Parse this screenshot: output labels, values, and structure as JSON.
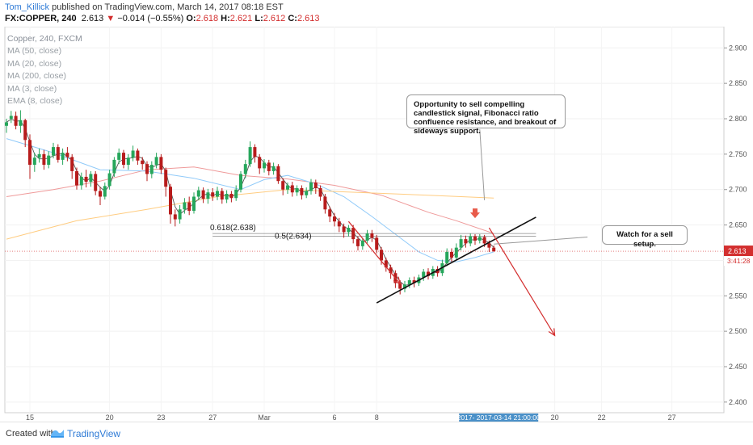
{
  "header": {
    "author": "Tom_Killick",
    "published_text": "published on TradingView.com, March 14, 2017 08:18 EST",
    "symbol": "FX:COPPER, 240",
    "last": "2.613",
    "change_icon": "triangle-down-icon",
    "change_arrow": "▼",
    "change": "−0.014 (−0.55%)",
    "o_label": "O:",
    "o": "2.618",
    "h_label": "H:",
    "h": "2.621",
    "l_label": "L:",
    "l": "2.612",
    "c_label": "C:",
    "c": "2.613"
  },
  "legend": {
    "items": [
      "Copper, 240, FXCM",
      "MA (50, close)",
      "MA (20, close)",
      "MA (200, close)",
      "MA (3, close)",
      "EMA (8, close)"
    ]
  },
  "annotations": {
    "opportunity": "Opportunity to sell compelling candlestick signal, Fibonacci ratio confluence resistance, and breakout of sideways support.",
    "watch": "Watch for a sell setup."
  },
  "footer": {
    "created": "Created with",
    "brand": "TradingView",
    "logo_icon": "tradingview-logo-icon"
  },
  "colors": {
    "up": "#26a65b",
    "down": "#b71c1c",
    "ma50": "#ef9a9a",
    "ma20": "#90caf9",
    "ma200": "#ffcc80",
    "ma3": "#555555",
    "arrow": "#d32f2f",
    "price_tag": "#d32f2f"
  },
  "chart_data": {
    "type": "candlestick",
    "symbol": "FX:COPPER",
    "timeframe": "240",
    "y_ticks": [
      "2.900",
      "2.850",
      "2.800",
      "2.750",
      "2.700",
      "2.650",
      "2.600",
      "2.550",
      "2.500",
      "2.450",
      "2.400"
    ],
    "ylim": [
      2.385,
      2.93
    ],
    "x_ticks": [
      {
        "label": "15",
        "index": 5
      },
      {
        "label": "20",
        "index": 22
      },
      {
        "label": "23",
        "index": 33
      },
      {
        "label": "27",
        "index": 44
      },
      {
        "label": "Mar",
        "index": 55
      },
      {
        "label": "6",
        "index": 70
      },
      {
        "label": "8",
        "index": 79
      },
      {
        "label": "20",
        "index": 117
      },
      {
        "label": "22",
        "index": 127
      },
      {
        "label": "27",
        "index": 142
      }
    ],
    "highlight_x_label": "2017- 2017-03-14 21:00:00",
    "current_price_label": "2.613",
    "countdown_label": "3:41:28",
    "fib_levels": [
      {
        "label": "0.618(2.638)",
        "value": 2.638
      },
      {
        "label": "0.5(2.634)",
        "value": 2.634
      }
    ],
    "trendline": {
      "from": {
        "index": 79,
        "value": 2.54
      },
      "to": {
        "index": 113,
        "value": 2.661
      }
    },
    "sell_arrows": [
      {
        "from": {
          "index": 73,
          "value": 2.655
        },
        "to": {
          "index": 84,
          "value": 2.567
        }
      },
      {
        "from": {
          "index": 103,
          "value": 2.646
        },
        "to": {
          "index": 117,
          "value": 2.494
        }
      }
    ],
    "callout_pointers": [
      {
        "from": {
          "index": 101,
          "value": 2.785
        },
        "to": {
          "index": 102,
          "value": 2.685
        }
      },
      {
        "from": {
          "index": 124,
          "value": 2.633
        },
        "to": {
          "index": 104,
          "value": 2.623
        }
      }
    ],
    "sell_marker": {
      "index": 100,
      "value": 2.663
    },
    "candles": [
      [
        2.79,
        2.795,
        2.78,
        2.8
      ],
      [
        2.8,
        2.804,
        2.794,
        2.811
      ],
      [
        2.804,
        2.79,
        2.785,
        2.81
      ],
      [
        2.79,
        2.798,
        2.78,
        2.812
      ],
      [
        2.798,
        2.77,
        2.76,
        2.8
      ],
      [
        2.77,
        2.735,
        2.715,
        2.778
      ],
      [
        2.735,
        2.745,
        2.725,
        2.752
      ],
      [
        2.745,
        2.75,
        2.738,
        2.758
      ],
      [
        2.75,
        2.735,
        2.728,
        2.756
      ],
      [
        2.735,
        2.748,
        2.73,
        2.754
      ],
      [
        2.748,
        2.76,
        2.744,
        2.766
      ],
      [
        2.76,
        2.742,
        2.738,
        2.764
      ],
      [
        2.742,
        2.752,
        2.735,
        2.758
      ],
      [
        2.752,
        2.746,
        2.74,
        2.76
      ],
      [
        2.746,
        2.726,
        2.715,
        2.75
      ],
      [
        2.726,
        2.706,
        2.7,
        2.731
      ],
      [
        2.706,
        2.718,
        2.7,
        2.724
      ],
      [
        2.718,
        2.711,
        2.703,
        2.728
      ],
      [
        2.711,
        2.722,
        2.704,
        2.726
      ],
      [
        2.722,
        2.698,
        2.692,
        2.726
      ],
      [
        2.698,
        2.69,
        2.678,
        2.704
      ],
      [
        2.69,
        2.705,
        2.686,
        2.71
      ],
      [
        2.705,
        2.723,
        2.7,
        2.728
      ],
      [
        2.723,
        2.742,
        2.718,
        2.746
      ],
      [
        2.742,
        2.752,
        2.736,
        2.758
      ],
      [
        2.752,
        2.735,
        2.73,
        2.756
      ],
      [
        2.735,
        2.745,
        2.728,
        2.75
      ],
      [
        2.745,
        2.755,
        2.74,
        2.762
      ],
      [
        2.755,
        2.741,
        2.735,
        2.758
      ],
      [
        2.741,
        2.736,
        2.728,
        2.746
      ],
      [
        2.736,
        2.722,
        2.712,
        2.74
      ],
      [
        2.722,
        2.735,
        2.716,
        2.74
      ],
      [
        2.735,
        2.746,
        2.73,
        2.752
      ],
      [
        2.746,
        2.728,
        2.722,
        2.75
      ],
      [
        2.728,
        2.704,
        2.69,
        2.731
      ],
      [
        2.704,
        2.665,
        2.652,
        2.708
      ],
      [
        2.665,
        2.658,
        2.648,
        2.672
      ],
      [
        2.658,
        2.672,
        2.652,
        2.678
      ],
      [
        2.672,
        2.682,
        2.666,
        2.688
      ],
      [
        2.682,
        2.67,
        2.664,
        2.69
      ],
      [
        2.67,
        2.69,
        2.666,
        2.696
      ],
      [
        2.69,
        2.699,
        2.685,
        2.704
      ],
      [
        2.699,
        2.687,
        2.681,
        2.703
      ],
      [
        2.687,
        2.696,
        2.68,
        2.701
      ],
      [
        2.696,
        2.69,
        2.684,
        2.702
      ],
      [
        2.69,
        2.698,
        2.685,
        2.704
      ],
      [
        2.698,
        2.686,
        2.68,
        2.702
      ],
      [
        2.686,
        2.694,
        2.681,
        2.699
      ],
      [
        2.694,
        2.688,
        2.682,
        2.698
      ],
      [
        2.688,
        2.7,
        2.684,
        2.706
      ],
      [
        2.7,
        2.722,
        2.696,
        2.726
      ],
      [
        2.722,
        2.736,
        2.716,
        2.742
      ],
      [
        2.736,
        2.76,
        2.732,
        2.768
      ],
      [
        2.76,
        2.746,
        2.738,
        2.764
      ],
      [
        2.746,
        2.73,
        2.722,
        2.75
      ],
      [
        2.73,
        2.738,
        2.724,
        2.743
      ],
      [
        2.738,
        2.726,
        2.72,
        2.742
      ],
      [
        2.726,
        2.733,
        2.721,
        2.738
      ],
      [
        2.733,
        2.712,
        2.708,
        2.736
      ],
      [
        2.712,
        2.7,
        2.692,
        2.716
      ],
      [
        2.7,
        2.706,
        2.694,
        2.71
      ],
      [
        2.706,
        2.696,
        2.69,
        2.711
      ],
      [
        2.696,
        2.702,
        2.691,
        2.706
      ],
      [
        2.702,
        2.692,
        2.686,
        2.706
      ],
      [
        2.692,
        2.698,
        2.688,
        2.703
      ],
      [
        2.698,
        2.71,
        2.693,
        2.715
      ],
      [
        2.71,
        2.702,
        2.694,
        2.714
      ],
      [
        2.702,
        2.69,
        2.684,
        2.706
      ],
      [
        2.69,
        2.672,
        2.666,
        2.694
      ],
      [
        2.672,
        2.662,
        2.654,
        2.676
      ],
      [
        2.662,
        2.655,
        2.648,
        2.667
      ],
      [
        2.655,
        2.648,
        2.64,
        2.66
      ],
      [
        2.648,
        2.64,
        2.632,
        2.652
      ],
      [
        2.64,
        2.646,
        2.634,
        2.65
      ],
      [
        2.646,
        2.63,
        2.624,
        2.65
      ],
      [
        2.63,
        2.62,
        2.614,
        2.634
      ],
      [
        2.62,
        2.628,
        2.615,
        2.632
      ],
      [
        2.628,
        2.638,
        2.624,
        2.643
      ],
      [
        2.638,
        2.632,
        2.626,
        2.643
      ],
      [
        2.632,
        2.615,
        2.61,
        2.636
      ],
      [
        2.615,
        2.6,
        2.594,
        2.619
      ],
      [
        2.6,
        2.59,
        2.584,
        2.604
      ],
      [
        2.59,
        2.582,
        2.574,
        2.594
      ],
      [
        2.582,
        2.568,
        2.561,
        2.586
      ],
      [
        2.568,
        2.56,
        2.552,
        2.572
      ],
      [
        2.56,
        2.566,
        2.555,
        2.571
      ],
      [
        2.566,
        2.572,
        2.561,
        2.576
      ],
      [
        2.572,
        2.568,
        2.562,
        2.577
      ],
      [
        2.568,
        2.576,
        2.564,
        2.58
      ],
      [
        2.576,
        2.584,
        2.571,
        2.588
      ],
      [
        2.584,
        2.578,
        2.573,
        2.589
      ],
      [
        2.578,
        2.588,
        2.574,
        2.592
      ],
      [
        2.588,
        2.582,
        2.577,
        2.592
      ],
      [
        2.582,
        2.596,
        2.578,
        2.601
      ],
      [
        2.596,
        2.612,
        2.592,
        2.617
      ],
      [
        2.612,
        2.604,
        2.598,
        2.617
      ],
      [
        2.604,
        2.618,
        2.6,
        2.624
      ],
      [
        2.618,
        2.63,
        2.614,
        2.636
      ],
      [
        2.63,
        2.624,
        2.618,
        2.635
      ],
      [
        2.624,
        2.634,
        2.62,
        2.638
      ],
      [
        2.634,
        2.628,
        2.622,
        2.637
      ],
      [
        2.628,
        2.633,
        2.624,
        2.637
      ],
      [
        2.633,
        2.624,
        2.619,
        2.636
      ],
      [
        2.624,
        2.618,
        2.612,
        2.628
      ],
      [
        2.618,
        2.613,
        2.612,
        2.621
      ]
    ],
    "series": [
      {
        "name": "MA (50, close)",
        "x": [
          0,
          10,
          20,
          30,
          40,
          50,
          60,
          70,
          80,
          90,
          96,
          104
        ],
        "y": [
          2.69,
          2.7,
          2.712,
          2.728,
          2.732,
          2.72,
          2.715,
          2.706,
          2.692,
          2.668,
          2.656,
          2.638
        ]
      },
      {
        "name": "MA (20, close)",
        "x": [
          0,
          10,
          20,
          30,
          40,
          50,
          55,
          60,
          66,
          72,
          78,
          84,
          88,
          92,
          96,
          100,
          104
        ],
        "y": [
          2.772,
          2.752,
          2.728,
          2.726,
          2.716,
          2.7,
          2.714,
          2.72,
          2.708,
          2.69,
          2.662,
          2.632,
          2.612,
          2.6,
          2.598,
          2.604,
          2.612
        ]
      },
      {
        "name": "MA (200, close)",
        "x": [
          0,
          15,
          30,
          45,
          60,
          75,
          90,
          104
        ],
        "y": [
          2.63,
          2.656,
          2.672,
          2.69,
          2.7,
          2.696,
          2.692,
          2.688
        ]
      }
    ]
  }
}
